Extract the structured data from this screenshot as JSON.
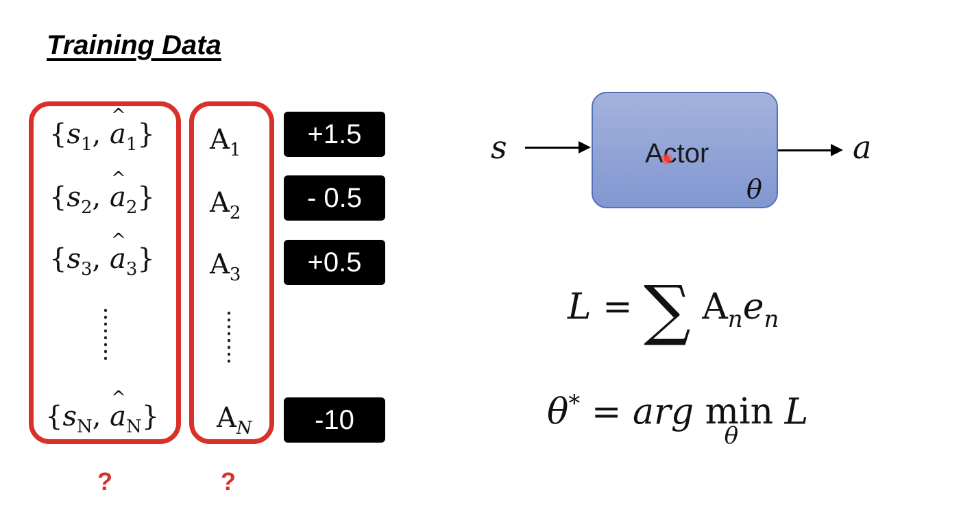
{
  "title": "Training Data",
  "pairs": [
    {
      "s": "s",
      "sub": "1",
      "a": "a",
      "asub": "1"
    },
    {
      "s": "s",
      "sub": "2",
      "a": "a",
      "asub": "2"
    },
    {
      "s": "s",
      "sub": "3",
      "a": "a",
      "asub": "3"
    },
    {
      "s": "s",
      "sub": "N",
      "a": "a",
      "asub": "N"
    }
  ],
  "advantages": [
    {
      "A": "A",
      "sub": "1"
    },
    {
      "A": "A",
      "sub": "2"
    },
    {
      "A": "A",
      "sub": "3"
    },
    {
      "A": "A",
      "sub": "N"
    }
  ],
  "scores": [
    "+1.5",
    "- 0.5",
    "+0.5",
    "-10"
  ],
  "question_marks": [
    "?",
    "?"
  ],
  "actor": {
    "label": "Actor",
    "param": "θ",
    "input": "s",
    "output": "a"
  },
  "loss": {
    "lhs": "L",
    "eq": "=",
    "sigma": "∑",
    "A": "A",
    "n": "n",
    "e": "e",
    "n2": "n"
  },
  "argmin": {
    "lhs": "θ",
    "star": "*",
    "eq": "=",
    "arg": "arg",
    "min": "min",
    "under": "θ",
    "L": "L"
  },
  "colors": {
    "accent_red": "#d9302b",
    "actor_blue": "#8fa3d8"
  }
}
